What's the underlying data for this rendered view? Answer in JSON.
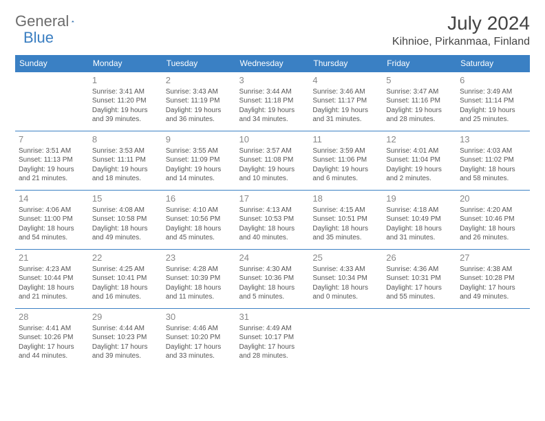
{
  "logo": {
    "part1": "General",
    "part2": "Blue"
  },
  "title": "July 2024",
  "location": "Kihnioe, Pirkanmaa, Finland",
  "colors": {
    "header_bg": "#3a80c4",
    "header_text": "#ffffff",
    "cell_border": "#3a80c4",
    "day_num": "#888888",
    "body_text": "#555555",
    "logo_gray": "#6b6b6b",
    "logo_blue": "#3a7ec1"
  },
  "typography": {
    "title_fontsize": 28,
    "location_fontsize": 16,
    "header_fontsize": 12,
    "daynum_fontsize": 13,
    "body_fontsize": 10
  },
  "weekdays": [
    "Sunday",
    "Monday",
    "Tuesday",
    "Wednesday",
    "Thursday",
    "Friday",
    "Saturday"
  ],
  "weeks": [
    [
      null,
      {
        "n": "1",
        "sr": "3:41 AM",
        "ss": "11:20 PM",
        "dl": "19 hours and 39 minutes."
      },
      {
        "n": "2",
        "sr": "3:43 AM",
        "ss": "11:19 PM",
        "dl": "19 hours and 36 minutes."
      },
      {
        "n": "3",
        "sr": "3:44 AM",
        "ss": "11:18 PM",
        "dl": "19 hours and 34 minutes."
      },
      {
        "n": "4",
        "sr": "3:46 AM",
        "ss": "11:17 PM",
        "dl": "19 hours and 31 minutes."
      },
      {
        "n": "5",
        "sr": "3:47 AM",
        "ss": "11:16 PM",
        "dl": "19 hours and 28 minutes."
      },
      {
        "n": "6",
        "sr": "3:49 AM",
        "ss": "11:14 PM",
        "dl": "19 hours and 25 minutes."
      }
    ],
    [
      {
        "n": "7",
        "sr": "3:51 AM",
        "ss": "11:13 PM",
        "dl": "19 hours and 21 minutes."
      },
      {
        "n": "8",
        "sr": "3:53 AM",
        "ss": "11:11 PM",
        "dl": "19 hours and 18 minutes."
      },
      {
        "n": "9",
        "sr": "3:55 AM",
        "ss": "11:09 PM",
        "dl": "19 hours and 14 minutes."
      },
      {
        "n": "10",
        "sr": "3:57 AM",
        "ss": "11:08 PM",
        "dl": "19 hours and 10 minutes."
      },
      {
        "n": "11",
        "sr": "3:59 AM",
        "ss": "11:06 PM",
        "dl": "19 hours and 6 minutes."
      },
      {
        "n": "12",
        "sr": "4:01 AM",
        "ss": "11:04 PM",
        "dl": "19 hours and 2 minutes."
      },
      {
        "n": "13",
        "sr": "4:03 AM",
        "ss": "11:02 PM",
        "dl": "18 hours and 58 minutes."
      }
    ],
    [
      {
        "n": "14",
        "sr": "4:06 AM",
        "ss": "11:00 PM",
        "dl": "18 hours and 54 minutes."
      },
      {
        "n": "15",
        "sr": "4:08 AM",
        "ss": "10:58 PM",
        "dl": "18 hours and 49 minutes."
      },
      {
        "n": "16",
        "sr": "4:10 AM",
        "ss": "10:56 PM",
        "dl": "18 hours and 45 minutes."
      },
      {
        "n": "17",
        "sr": "4:13 AM",
        "ss": "10:53 PM",
        "dl": "18 hours and 40 minutes."
      },
      {
        "n": "18",
        "sr": "4:15 AM",
        "ss": "10:51 PM",
        "dl": "18 hours and 35 minutes."
      },
      {
        "n": "19",
        "sr": "4:18 AM",
        "ss": "10:49 PM",
        "dl": "18 hours and 31 minutes."
      },
      {
        "n": "20",
        "sr": "4:20 AM",
        "ss": "10:46 PM",
        "dl": "18 hours and 26 minutes."
      }
    ],
    [
      {
        "n": "21",
        "sr": "4:23 AM",
        "ss": "10:44 PM",
        "dl": "18 hours and 21 minutes."
      },
      {
        "n": "22",
        "sr": "4:25 AM",
        "ss": "10:41 PM",
        "dl": "18 hours and 16 minutes."
      },
      {
        "n": "23",
        "sr": "4:28 AM",
        "ss": "10:39 PM",
        "dl": "18 hours and 11 minutes."
      },
      {
        "n": "24",
        "sr": "4:30 AM",
        "ss": "10:36 PM",
        "dl": "18 hours and 5 minutes."
      },
      {
        "n": "25",
        "sr": "4:33 AM",
        "ss": "10:34 PM",
        "dl": "18 hours and 0 minutes."
      },
      {
        "n": "26",
        "sr": "4:36 AM",
        "ss": "10:31 PM",
        "dl": "17 hours and 55 minutes."
      },
      {
        "n": "27",
        "sr": "4:38 AM",
        "ss": "10:28 PM",
        "dl": "17 hours and 49 minutes."
      }
    ],
    [
      {
        "n": "28",
        "sr": "4:41 AM",
        "ss": "10:26 PM",
        "dl": "17 hours and 44 minutes."
      },
      {
        "n": "29",
        "sr": "4:44 AM",
        "ss": "10:23 PM",
        "dl": "17 hours and 39 minutes."
      },
      {
        "n": "30",
        "sr": "4:46 AM",
        "ss": "10:20 PM",
        "dl": "17 hours and 33 minutes."
      },
      {
        "n": "31",
        "sr": "4:49 AM",
        "ss": "10:17 PM",
        "dl": "17 hours and 28 minutes."
      },
      null,
      null,
      null
    ]
  ],
  "labels": {
    "sunrise": "Sunrise: ",
    "sunset": "Sunset: ",
    "daylight": "Daylight: "
  }
}
